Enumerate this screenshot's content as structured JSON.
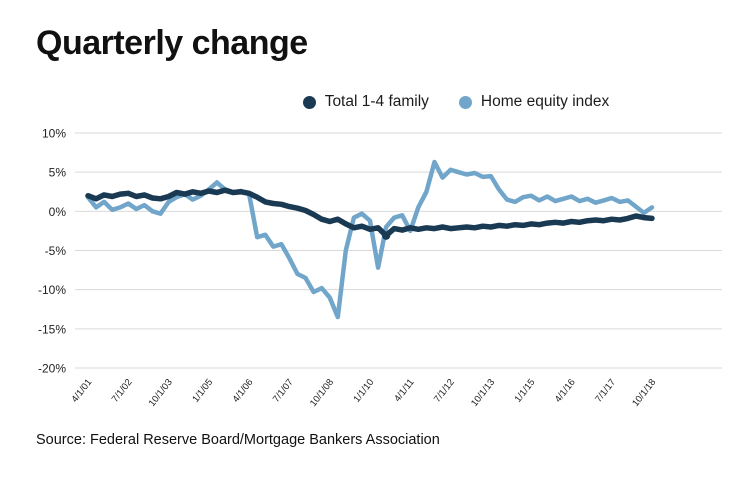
{
  "title": "Quarterly change",
  "source": "Source: Federal Reserve Board/Mortgage Bankers Association",
  "legend": [
    {
      "label": "Total 1-4 family",
      "color": "#1a3a54"
    },
    {
      "label": "Home equity index",
      "color": "#71a6ca"
    }
  ],
  "chart_data": {
    "type": "line",
    "title": "Quarterly change",
    "xlabel": "",
    "ylabel": "",
    "ylim": [
      -20,
      10
    ],
    "yticks": [
      10,
      5,
      0,
      -5,
      -10,
      -15,
      -20
    ],
    "ytick_suffix": "%",
    "grid": "horizontal",
    "grid_color": "#d9d9d9",
    "axis_color": "#1f1f1f",
    "legend_position": "top",
    "xtick_every": 5,
    "xtick_labels_shown": [
      "4/1/01",
      "7/1/02",
      "10/1/03",
      "1/1/05",
      "4/1/06",
      "7/1/07",
      "10/1/08",
      "1/1/10",
      "4/1/11",
      "7/1/12",
      "10/1/13",
      "1/1/15",
      "4/1/16",
      "7/1/17",
      "10/1/18"
    ],
    "x": [
      "4/1/01",
      "7/1/01",
      "10/1/01",
      "1/1/02",
      "4/1/02",
      "7/1/02",
      "10/1/02",
      "1/1/03",
      "4/1/03",
      "7/1/03",
      "10/1/03",
      "1/1/04",
      "4/1/04",
      "7/1/04",
      "10/1/04",
      "1/1/05",
      "4/1/05",
      "7/1/05",
      "10/1/05",
      "1/1/06",
      "4/1/06",
      "7/1/06",
      "10/1/06",
      "1/1/07",
      "4/1/07",
      "7/1/07",
      "10/1/07",
      "1/1/08",
      "4/1/08",
      "7/1/08",
      "10/1/08",
      "1/1/09",
      "4/1/09",
      "7/1/09",
      "10/1/09",
      "1/1/10",
      "4/1/10",
      "7/1/10",
      "10/1/10",
      "1/1/11",
      "4/1/11",
      "7/1/11",
      "10/1/11",
      "1/1/12",
      "4/1/12",
      "7/1/12",
      "10/1/12",
      "1/1/13",
      "4/1/13",
      "7/1/13",
      "10/1/13",
      "1/1/14",
      "4/1/14",
      "7/1/14",
      "10/1/14",
      "1/1/15",
      "4/1/15",
      "7/1/15",
      "10/1/15",
      "1/1/16",
      "4/1/16",
      "7/1/16",
      "10/1/16",
      "1/1/17",
      "4/1/17",
      "7/1/17",
      "10/1/17",
      "1/1/18",
      "4/1/18",
      "7/1/18",
      "10/1/18"
    ],
    "series": [
      {
        "name": "Total 1-4 family",
        "color": "#1a3a54",
        "width": 5.5,
        "values": [
          2.0,
          1.6,
          2.1,
          1.9,
          2.2,
          2.3,
          1.9,
          2.1,
          1.7,
          1.6,
          1.9,
          2.4,
          2.2,
          2.5,
          2.3,
          2.6,
          2.4,
          2.7,
          2.4,
          2.5,
          2.3,
          1.8,
          1.2,
          1.0,
          0.9,
          0.6,
          0.4,
          0.1,
          -0.4,
          -1.0,
          -1.3,
          -1.0,
          -1.6,
          -2.1,
          -1.9,
          -2.3,
          -2.1,
          -3.1,
          -2.2,
          -2.4,
          -2.1,
          -2.3,
          -2.1,
          -2.2,
          -2.0,
          -2.2,
          -2.1,
          -2.0,
          -2.1,
          -1.9,
          -2.0,
          -1.8,
          -1.9,
          -1.7,
          -1.8,
          -1.6,
          -1.7,
          -1.5,
          -1.4,
          -1.5,
          -1.3,
          -1.4,
          -1.2,
          -1.1,
          -1.2,
          -1.0,
          -1.1,
          -0.9,
          -0.6,
          -0.8,
          -0.9
        ]
      },
      {
        "name": "Home equity index",
        "color": "#71a6ca",
        "width": 4.5,
        "values": [
          1.8,
          0.5,
          1.2,
          0.2,
          0.5,
          1.0,
          0.3,
          0.8,
          0.0,
          -0.3,
          1.2,
          1.8,
          2.2,
          1.5,
          2.0,
          2.8,
          3.7,
          2.8,
          2.4,
          2.6,
          2.2,
          -3.3,
          -3.0,
          -4.5,
          -4.2,
          -6.0,
          -8.0,
          -8.5,
          -10.3,
          -9.8,
          -11.0,
          -13.5,
          -5.0,
          -0.8,
          -0.3,
          -1.2,
          -7.2,
          -2.0,
          -0.8,
          -0.5,
          -2.5,
          0.5,
          2.5,
          6.3,
          4.3,
          5.3,
          5.0,
          4.7,
          4.9,
          4.4,
          4.5,
          2.8,
          1.5,
          1.2,
          1.8,
          2.0,
          1.4,
          1.9,
          1.3,
          1.6,
          1.9,
          1.3,
          1.6,
          1.1,
          1.4,
          1.7,
          1.2,
          1.4,
          0.6,
          -0.2,
          0.5
        ]
      }
    ],
    "marker": {
      "series": 0,
      "index": 37
    }
  }
}
